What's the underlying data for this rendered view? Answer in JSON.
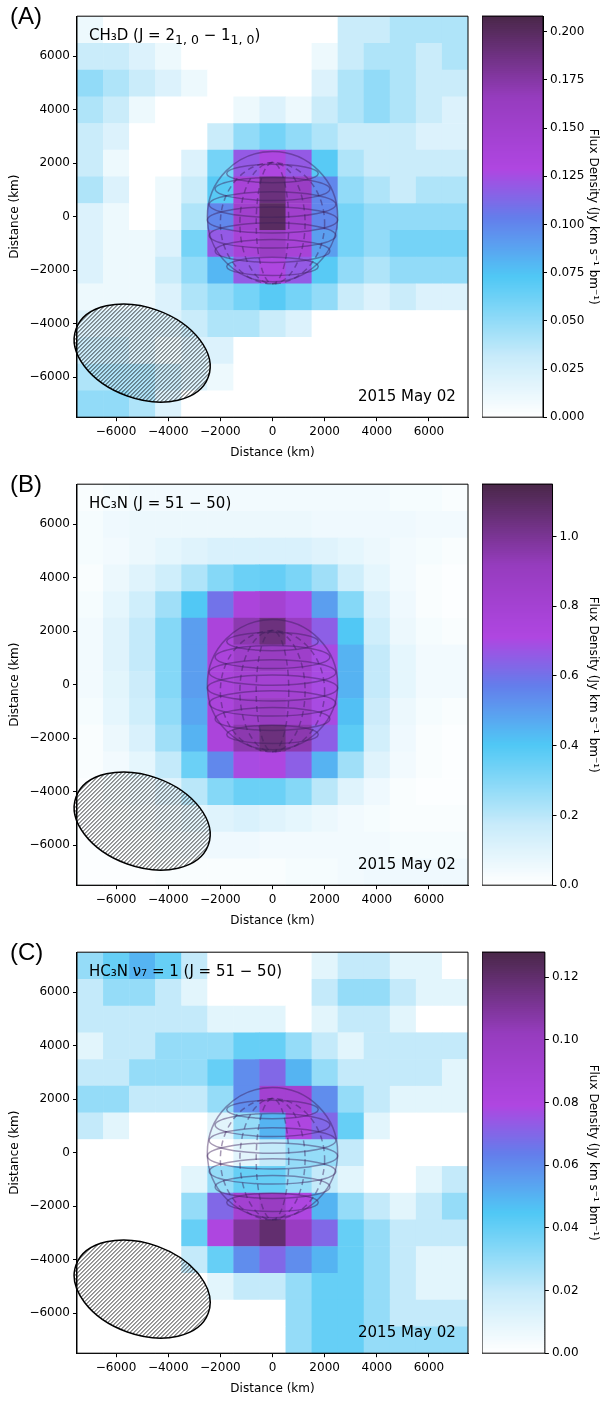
{
  "chart_data": [
    {
      "type": "heatmap",
      "title": "(A)",
      "xlabel": "Distance (km)",
      "ylabel": "Distance (km)",
      "clabel": "Flux Density (Jy km s⁻¹ bm⁻¹)",
      "annotations": [
        "CH₃D (J = 2$_{1, 0}$ − 1$_{1, 0}$)",
        "2015 May 02"
      ],
      "x": [
        -7000,
        -6000,
        -5000,
        -4000,
        -3000,
        -2000,
        -1000,
        0,
        1000,
        2000,
        3000,
        4000,
        5000,
        6000,
        7000
      ],
      "y": [
        7000,
        6000,
        5000,
        4000,
        3000,
        2000,
        1000,
        0,
        -1000,
        -2000,
        -3000,
        -4000,
        -5000,
        -6000,
        -7000
      ],
      "xlim": [
        -7500,
        7500
      ],
      "ylim": [
        -7500,
        7500
      ],
      "xticks": [
        {
          "value": -6000,
          "label": "−6000"
        },
        {
          "value": -4000,
          "label": "−4000"
        },
        {
          "value": -2000,
          "label": "−2000"
        },
        0,
        2000,
        4000,
        6000
      ],
      "yticks": [
        {
          "value": -6000,
          "label": "−6000"
        },
        {
          "value": -4000,
          "label": "−4000"
        },
        {
          "value": -2000,
          "label": "−2000"
        },
        0,
        2000,
        4000,
        6000
      ],
      "clim": [
        0,
        0.208
      ],
      "cticks": [
        {
          "value": 0,
          "label": "0.000"
        },
        {
          "value": 0.025,
          "label": "0.025"
        },
        {
          "value": 0.05,
          "label": "0.050"
        },
        {
          "value": 0.075,
          "label": "0.075"
        },
        {
          "value": 0.1,
          "label": "0.100"
        },
        {
          "value": 0.125,
          "label": "0.125"
        },
        {
          "value": 0.15,
          "label": "0.150"
        },
        {
          "value": 0.175,
          "label": "0.175"
        },
        {
          "value": 0.2,
          "label": "0.200"
        }
      ],
      "cells": [
        [
          0.01,
          0,
          0,
          0,
          0,
          0,
          0,
          0,
          0,
          0,
          0.03,
          0.03,
          0.04,
          0.04,
          0.04
        ],
        [
          0.03,
          0.03,
          0.02,
          0.01,
          0,
          0,
          0,
          0,
          0,
          0.01,
          0.03,
          0.04,
          0.04,
          0.03,
          0.04
        ],
        [
          0.05,
          0.04,
          0.03,
          0.02,
          0.01,
          0,
          0,
          0,
          0,
          0.02,
          0.04,
          0.05,
          0.04,
          0.03,
          0.03
        ],
        [
          0.04,
          0.03,
          0.01,
          0,
          0,
          0,
          0.01,
          0.02,
          0.01,
          0.03,
          0.04,
          0.05,
          0.04,
          0.03,
          0.02
        ],
        [
          0.03,
          0.02,
          0,
          0,
          0,
          0.03,
          0.05,
          0.06,
          0.05,
          0.04,
          0.03,
          0.03,
          0.03,
          0.02,
          0.02
        ],
        [
          0.03,
          0.01,
          0,
          0,
          0.02,
          0.06,
          0.12,
          0.13,
          0.12,
          0.07,
          0.04,
          0.03,
          0.03,
          0.03,
          0.03
        ],
        [
          0.04,
          0.02,
          0,
          0.01,
          0.03,
          0.07,
          0.14,
          0.19,
          0.16,
          0.1,
          0.05,
          0.04,
          0.03,
          0.04,
          0.04
        ],
        [
          0.02,
          0.01,
          0,
          0.01,
          0.04,
          0.1,
          0.15,
          0.2,
          0.15,
          0.1,
          0.06,
          0.05,
          0.05,
          0.05,
          0.05
        ],
        [
          0.02,
          0.01,
          0.01,
          0.02,
          0.06,
          0.12,
          0.14,
          0.16,
          0.14,
          0.09,
          0.06,
          0.05,
          0.06,
          0.06,
          0.06
        ],
        [
          0.02,
          0.01,
          0.01,
          0.03,
          0.05,
          0.08,
          0.12,
          0.13,
          0.12,
          0.07,
          0.05,
          0.04,
          0.05,
          0.05,
          0.05
        ],
        [
          0.01,
          0.01,
          0.01,
          0.02,
          0.04,
          0.05,
          0.06,
          0.07,
          0.06,
          0.05,
          0.03,
          0.02,
          0.03,
          0.02,
          0.02
        ],
        [
          0.02,
          0.02,
          0.02,
          0.02,
          0.03,
          0.04,
          0.04,
          0.03,
          0.02,
          0,
          0,
          0,
          0,
          0,
          0
        ],
        [
          0.03,
          0.03,
          0.02,
          0.01,
          0.02,
          0.02,
          0,
          0,
          0,
          0,
          0,
          0,
          0,
          0,
          0
        ],
        [
          0.04,
          0.04,
          0.04,
          0.03,
          0.02,
          0.01,
          0,
          0,
          0,
          0,
          0,
          0,
          0,
          0,
          0
        ],
        [
          0.05,
          0.05,
          0.04,
          0.02,
          0,
          0,
          0,
          0,
          0,
          0,
          0,
          0,
          0,
          0,
          0
        ]
      ]
    },
    {
      "type": "heatmap",
      "title": "(B)",
      "xlabel": "Distance (km)",
      "ylabel": "Distance (km)",
      "clabel": "Flux Density (Jy km s⁻¹ bm⁻¹)",
      "annotations": [
        "HC₃N (J = 51 − 50)",
        "2015 May 02"
      ],
      "x": [
        -7000,
        -6000,
        -5000,
        -4000,
        -3000,
        -2000,
        -1000,
        0,
        1000,
        2000,
        3000,
        4000,
        5000,
        6000,
        7000
      ],
      "y": [
        7000,
        6000,
        5000,
        4000,
        3000,
        2000,
        1000,
        0,
        -1000,
        -2000,
        -3000,
        -4000,
        -5000,
        -6000,
        -7000
      ],
      "xlim": [
        -7500,
        7500
      ],
      "ylim": [
        -7500,
        7500
      ],
      "xticks": [
        {
          "value": -6000,
          "label": "−6000"
        },
        {
          "value": -4000,
          "label": "−4000"
        },
        {
          "value": -2000,
          "label": "−2000"
        },
        0,
        2000,
        4000,
        6000
      ],
      "yticks": [
        {
          "value": -6000,
          "label": "−6000"
        },
        {
          "value": -4000,
          "label": "−4000"
        },
        {
          "value": -2000,
          "label": "−2000"
        },
        0,
        2000,
        4000,
        6000
      ],
      "clim": [
        0,
        1.15
      ],
      "cticks": [
        {
          "value": 0,
          "label": "0.0"
        },
        {
          "value": 0.2,
          "label": "0.2"
        },
        {
          "value": 0.4,
          "label": "0.4"
        },
        {
          "value": 0.6,
          "label": "0.6"
        },
        {
          "value": 0.8,
          "label": "0.8"
        },
        {
          "value": 1,
          "label": "1.0"
        }
      ],
      "cells": [
        [
          0.02,
          0.03,
          0.04,
          0.04,
          0.04,
          0.04,
          0.04,
          0.04,
          0.04,
          0.04,
          0.04,
          0.04,
          0.03,
          0.03,
          0.02
        ],
        [
          0.03,
          0.05,
          0.06,
          0.06,
          0.06,
          0.06,
          0.06,
          0.06,
          0.06,
          0.05,
          0.05,
          0.05,
          0.05,
          0.04,
          0.04
        ],
        [
          0.03,
          0.04,
          0.06,
          0.08,
          0.1,
          0.12,
          0.12,
          0.12,
          0.12,
          0.1,
          0.08,
          0.06,
          0.04,
          0.03,
          0.02
        ],
        [
          0.02,
          0.06,
          0.1,
          0.15,
          0.22,
          0.3,
          0.35,
          0.36,
          0.32,
          0.25,
          0.15,
          0.08,
          0.04,
          0.02,
          0.01
        ],
        [
          0.03,
          0.08,
          0.15,
          0.25,
          0.4,
          0.6,
          0.75,
          0.8,
          0.7,
          0.5,
          0.3,
          0.12,
          0.05,
          0.02,
          0.01
        ],
        [
          0.04,
          0.1,
          0.18,
          0.3,
          0.5,
          0.75,
          0.95,
          1.05,
          0.9,
          0.65,
          0.4,
          0.15,
          0.06,
          0.03,
          0.02
        ],
        [
          0.04,
          0.1,
          0.18,
          0.3,
          0.5,
          0.75,
          0.85,
          0.9,
          0.85,
          0.7,
          0.45,
          0.18,
          0.08,
          0.04,
          0.04
        ],
        [
          0.04,
          0.09,
          0.16,
          0.3,
          0.5,
          0.75,
          0.8,
          0.8,
          0.8,
          0.7,
          0.45,
          0.18,
          0.08,
          0.04,
          0.04
        ],
        [
          0.03,
          0.08,
          0.15,
          0.28,
          0.48,
          0.75,
          0.85,
          0.9,
          0.85,
          0.7,
          0.42,
          0.16,
          0.06,
          0.03,
          0.02
        ],
        [
          0.02,
          0.06,
          0.12,
          0.25,
          0.45,
          0.75,
          0.95,
          1.05,
          0.95,
          0.65,
          0.38,
          0.14,
          0.05,
          0.02,
          0.01
        ],
        [
          0.02,
          0.04,
          0.08,
          0.18,
          0.35,
          0.55,
          0.7,
          0.72,
          0.65,
          0.45,
          0.25,
          0.1,
          0.04,
          0.02,
          0.01
        ],
        [
          0.01,
          0.03,
          0.05,
          0.1,
          0.2,
          0.3,
          0.35,
          0.35,
          0.3,
          0.2,
          0.1,
          0.05,
          0.02,
          0.01,
          0.01
        ],
        [
          0.01,
          0.02,
          0.03,
          0.05,
          0.08,
          0.1,
          0.12,
          0.1,
          0.08,
          0.06,
          0.04,
          0.03,
          0.02,
          0.02,
          0.02
        ],
        [
          0.01,
          0.01,
          0.02,
          0.03,
          0.04,
          0.05,
          0.05,
          0.04,
          0.04,
          0.04,
          0.04,
          0.04,
          0.03,
          0.03,
          0.03
        ],
        [
          0.01,
          0.01,
          0.01,
          0.02,
          0.02,
          0.02,
          0.02,
          0.02,
          0.03,
          0.03,
          0.04,
          0.05,
          0.05,
          0.05,
          0.05
        ]
      ]
    },
    {
      "type": "heatmap",
      "title": "(C)",
      "xlabel": "Distance (km)",
      "ylabel": "Distance (km)",
      "clabel": "Flux Density (Jy km s⁻¹ bm⁻¹)",
      "annotations": [
        "HC₃N ν₇ = 1 (J = 51 − 50)",
        "2015 May 02"
      ],
      "x": [
        -7000,
        -6000,
        -5000,
        -4000,
        -3000,
        -2000,
        -1000,
        0,
        1000,
        2000,
        3000,
        4000,
        5000,
        6000,
        7000
      ],
      "y": [
        7000,
        6000,
        5000,
        4000,
        3000,
        2000,
        1000,
        0,
        -1000,
        -2000,
        -3000,
        -4000,
        -5000,
        -6000,
        -7000
      ],
      "xlim": [
        -7500,
        7500
      ],
      "ylim": [
        -7500,
        7500
      ],
      "xticks": [
        {
          "value": -6000,
          "label": "−6000"
        },
        {
          "value": -4000,
          "label": "−4000"
        },
        {
          "value": -2000,
          "label": "−2000"
        },
        0,
        2000,
        4000,
        6000
      ],
      "yticks": [
        {
          "value": -6000,
          "label": "−6000"
        },
        {
          "value": -4000,
          "label": "−4000"
        },
        {
          "value": -2000,
          "label": "−2000"
        },
        0,
        2000,
        4000,
        6000
      ],
      "clim": [
        0,
        0.128
      ],
      "cticks": [
        {
          "value": 0,
          "label": "0.00"
        },
        {
          "value": 0.02,
          "label": "0.02"
        },
        {
          "value": 0.04,
          "label": "0.04"
        },
        {
          "value": 0.06,
          "label": "0.06"
        },
        {
          "value": 0.08,
          "label": "0.08"
        },
        {
          "value": 0.1,
          "label": "0.10"
        },
        {
          "value": 0.12,
          "label": "0.12"
        }
      ],
      "cells": [
        [
          0.03,
          0.04,
          0.05,
          0.04,
          0.02,
          0,
          0,
          0,
          0,
          0.01,
          0.02,
          0.02,
          0.01,
          0.01,
          0
        ],
        [
          0.02,
          0.03,
          0.03,
          0.02,
          0.01,
          0,
          0,
          0,
          0,
          0.02,
          0.03,
          0.03,
          0.02,
          0.01,
          0.01
        ],
        [
          0.02,
          0.02,
          0.02,
          0.02,
          0.02,
          0.01,
          0.01,
          0.01,
          0,
          0.01,
          0.02,
          0.02,
          0.01,
          0,
          0
        ],
        [
          0.01,
          0.02,
          0.02,
          0.03,
          0.03,
          0.03,
          0.04,
          0.04,
          0.03,
          0.02,
          0.01,
          0.02,
          0.02,
          0.02,
          0.02
        ],
        [
          0.02,
          0.02,
          0.03,
          0.03,
          0.03,
          0.04,
          0.06,
          0.07,
          0.05,
          0.03,
          0.02,
          0.02,
          0.02,
          0.02,
          0.01
        ],
        [
          0.03,
          0.03,
          0.02,
          0.02,
          0.02,
          0.03,
          0.06,
          0.09,
          0.09,
          0.06,
          0.03,
          0.02,
          0.01,
          0.01,
          0.01
        ],
        [
          0.02,
          0.01,
          0,
          0,
          0,
          0.01,
          0.03,
          0.05,
          0.08,
          0.07,
          0.04,
          0.01,
          0,
          0,
          0
        ],
        [
          0,
          0,
          0,
          0,
          0,
          0,
          0.01,
          0.02,
          0.03,
          0.03,
          0.02,
          0,
          0,
          0,
          0
        ],
        [
          0,
          0,
          0,
          0,
          0.01,
          0.03,
          0.04,
          0.04,
          0.03,
          0.02,
          0.01,
          0,
          0,
          0.01,
          0.02
        ],
        [
          0,
          0,
          0,
          0,
          0.03,
          0.07,
          0.09,
          0.1,
          0.08,
          0.05,
          0.03,
          0.02,
          0.01,
          0.02,
          0.03
        ],
        [
          0,
          0,
          0,
          0,
          0.04,
          0.08,
          0.11,
          0.12,
          0.1,
          0.07,
          0.04,
          0.03,
          0.02,
          0.02,
          0.02
        ],
        [
          0,
          0,
          0,
          0,
          0.02,
          0.04,
          0.06,
          0.07,
          0.06,
          0.05,
          0.04,
          0.03,
          0.02,
          0.01,
          0.01
        ],
        [
          0,
          0,
          0,
          0,
          0,
          0.01,
          0.02,
          0.02,
          0.03,
          0.04,
          0.04,
          0.03,
          0.02,
          0.01,
          0.01
        ],
        [
          0,
          0,
          0,
          0,
          0,
          0,
          0,
          0,
          0.03,
          0.04,
          0.04,
          0.03,
          0.02,
          0.02,
          0.02
        ],
        [
          0,
          0,
          0,
          0,
          0,
          0,
          0,
          0,
          0.03,
          0.04,
          0.04,
          0.03,
          0.03,
          0.03,
          0.03
        ]
      ]
    }
  ]
}
